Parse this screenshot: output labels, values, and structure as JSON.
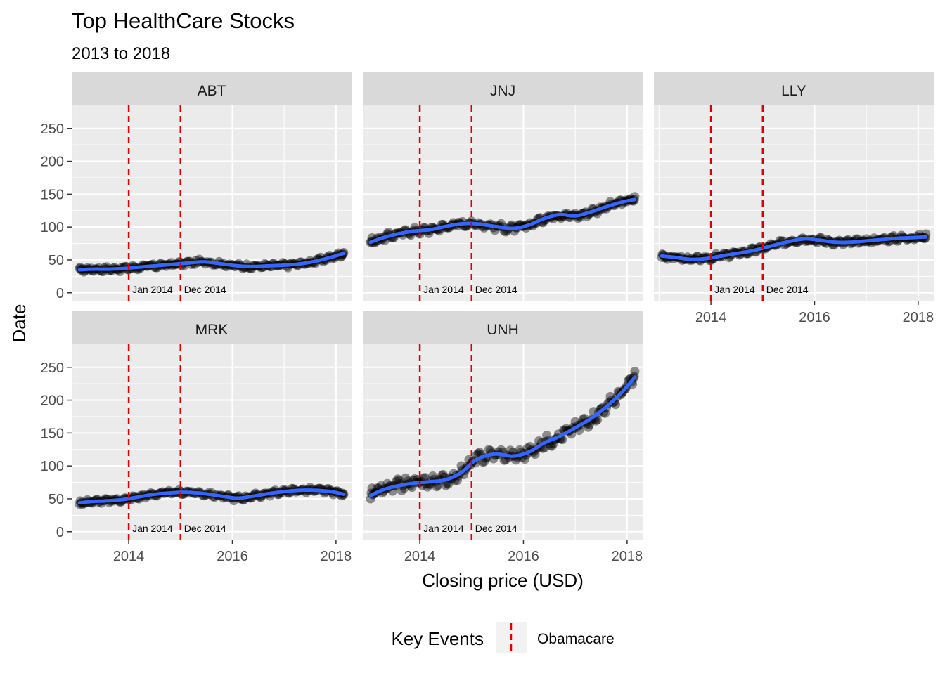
{
  "chart_data": {
    "type": "line",
    "title": "Top HealthCare Stocks",
    "subtitle": "2013 to 2018",
    "xlabel": "Closing price (USD)",
    "ylabel": "Date",
    "xlim": [
      2012.9,
      2018.3
    ],
    "ylim": [
      -12,
      285
    ],
    "x_ticks": [
      2014,
      2016,
      2018
    ],
    "y_ticks": [
      0,
      50,
      100,
      150,
      200,
      250
    ],
    "grid": true,
    "legend": {
      "title": "Key Events",
      "placement": "bottom",
      "entries": [
        {
          "label": "Obamacare",
          "color": "#e00000",
          "linetype": "dashed"
        }
      ]
    },
    "event_lines": [
      {
        "x": 2014.0,
        "label": "Jan 2014"
      },
      {
        "x": 2015.0,
        "label": "Dec 2014"
      }
    ],
    "colors": {
      "smooth": "#3366ff",
      "points": "#000000",
      "event": "#e00000",
      "panel_bg": "#ebebeb",
      "strip_bg": "#d9d9d9"
    },
    "panels": [
      {
        "name": "ABT",
        "x": [
          2013.05,
          2013.3,
          2013.6,
          2013.9,
          2014.2,
          2014.5,
          2014.8,
          2015.1,
          2015.45,
          2015.8,
          2016.1,
          2016.4,
          2016.7,
          2017.0,
          2017.3,
          2017.6,
          2017.9,
          2018.15
        ],
        "y": [
          35,
          36,
          36,
          37,
          39,
          41,
          43,
          45,
          47,
          44,
          41,
          40,
          41,
          42,
          44,
          48,
          54,
          60
        ]
      },
      {
        "name": "JNJ",
        "x": [
          2013.05,
          2013.3,
          2013.6,
          2013.9,
          2014.2,
          2014.5,
          2014.8,
          2015.1,
          2015.45,
          2015.8,
          2016.1,
          2016.4,
          2016.7,
          2017.0,
          2017.3,
          2017.6,
          2017.9,
          2018.15
        ],
        "y": [
          77,
          84,
          90,
          94,
          96,
          101,
          105,
          105,
          101,
          98,
          103,
          113,
          119,
          117,
          123,
          131,
          138,
          142
        ]
      },
      {
        "name": "LLY",
        "x": [
          2013.05,
          2013.3,
          2013.6,
          2013.9,
          2014.2,
          2014.5,
          2014.8,
          2015.1,
          2015.45,
          2015.8,
          2016.1,
          2016.4,
          2016.7,
          2017.0,
          2017.3,
          2017.6,
          2017.9,
          2018.15
        ],
        "y": [
          56,
          54,
          51,
          52,
          56,
          60,
          64,
          70,
          77,
          82,
          80,
          77,
          77,
          79,
          81,
          83,
          84,
          85
        ]
      },
      {
        "name": "MRK",
        "x": [
          2013.05,
          2013.3,
          2013.6,
          2013.9,
          2014.2,
          2014.5,
          2014.8,
          2015.1,
          2015.45,
          2015.8,
          2016.1,
          2016.4,
          2016.7,
          2017.0,
          2017.3,
          2017.6,
          2017.9,
          2018.15
        ],
        "y": [
          44,
          46,
          47,
          49,
          53,
          57,
          59,
          60,
          58,
          54,
          51,
          54,
          58,
          61,
          63,
          63,
          61,
          57
        ]
      },
      {
        "name": "UNH",
        "x": [
          2013.05,
          2013.3,
          2013.6,
          2013.9,
          2014.2,
          2014.5,
          2014.8,
          2015.1,
          2015.45,
          2015.8,
          2016.1,
          2016.4,
          2016.7,
          2017.0,
          2017.3,
          2017.6,
          2017.9,
          2018.15
        ],
        "y": [
          55,
          64,
          70,
          74,
          76,
          79,
          90,
          110,
          118,
          115,
          121,
          135,
          145,
          158,
          172,
          190,
          212,
          235
        ]
      }
    ]
  }
}
